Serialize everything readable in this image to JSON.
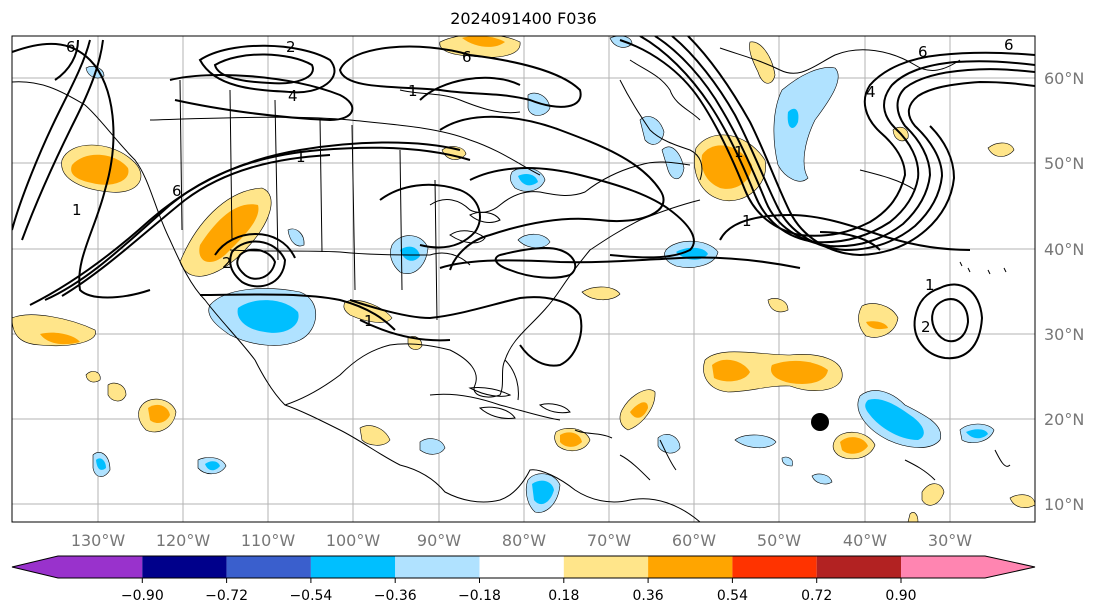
{
  "title": "2024091400 F036",
  "lat_labels": [
    "60°N",
    "50°N",
    "40°N",
    "30°N",
    "20°N",
    "10°N"
  ],
  "lon_labels": [
    "130°W",
    "120°W",
    "110°W",
    "100°W",
    "90°W",
    "80°W",
    "70°W",
    "60°W",
    "50°W",
    "40°W",
    "30°W"
  ],
  "colorbar": {
    "colors": [
      "#9932cc",
      "#00008b",
      "#3a5fcd",
      "#00bfff",
      "#b0e2ff",
      "#ffffff",
      "#ffe58a",
      "#ffa500",
      "#ff3300",
      "#b22222",
      "#ff85b1"
    ],
    "tick_labels": [
      "−0.90",
      "−0.72",
      "−0.54",
      "−0.36",
      "−0.18",
      "0.18",
      "0.36",
      "0.54",
      "0.72",
      "0.90"
    ]
  },
  "contour_labels": [
    "6",
    "2",
    "4",
    "1",
    "1",
    "6",
    "1",
    "2",
    "1",
    "1",
    "6",
    "4",
    "1",
    "1",
    "2",
    "6",
    "6"
  ],
  "storm_marker": "storm-center"
}
